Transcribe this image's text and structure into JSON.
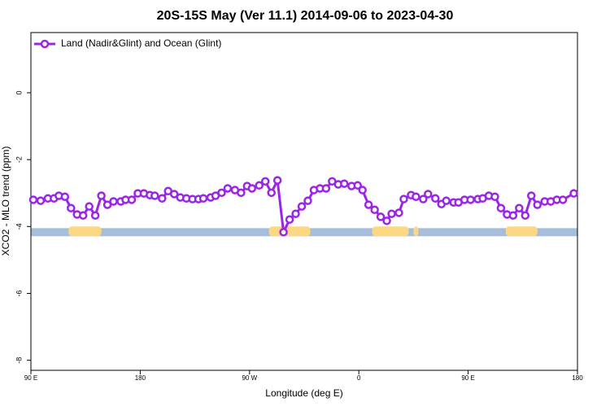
{
  "chart_data": {
    "type": "line",
    "title": "20S-15S May (Ver 11.1)   2014-09-06 to 2023-04-30",
    "x_label": "Longitude (deg E)",
    "y_label": "XCO2 - MLO trend (ppm)",
    "xlim": [
      90,
      540
    ],
    "ylim": [
      -8.3,
      1.8
    ],
    "xticks": [
      {
        "value": 90,
        "label": "90 E"
      },
      180,
      {
        "value": 270,
        "label": "90 W"
      },
      {
        "value": 360,
        "label": "0"
      },
      {
        "value": 450,
        "label": "90 E"
      },
      {
        "value": 540,
        "label": "180"
      }
    ],
    "yticks": [
      -8,
      -6,
      -4,
      -2,
      0
    ],
    "legend": "top-left",
    "x": [
      92,
      98,
      104,
      109,
      113,
      118,
      123,
      128,
      133,
      138,
      143,
      148,
      153,
      158,
      164,
      168,
      173,
      178,
      183,
      188,
      192,
      198,
      203,
      208,
      213,
      218,
      223,
      228,
      232,
      238,
      242,
      247,
      252,
      258,
      263,
      268,
      272,
      278,
      283,
      288,
      293,
      298,
      303,
      308,
      313,
      318,
      323,
      328,
      333,
      338,
      343,
      348,
      354,
      359,
      363,
      368,
      373,
      378,
      383,
      387,
      393,
      397,
      403,
      407,
      413,
      417,
      423,
      428,
      432,
      438,
      442,
      447,
      452,
      458,
      462,
      467,
      472,
      477,
      482,
      487,
      492,
      497,
      502,
      507,
      513,
      518,
      523,
      528,
      537
    ],
    "series": [
      {
        "name": "Land (Nadir&Glint) and Ocean (Glint)",
        "color": "#9b25e6",
        "values": [
          -3.2,
          -3.23,
          -3.16,
          -3.16,
          -3.08,
          -3.11,
          -3.45,
          -3.64,
          -3.67,
          -3.4,
          -3.67,
          -3.08,
          -3.35,
          -3.25,
          -3.25,
          -3.2,
          -3.2,
          -3.01,
          -3.01,
          -3.06,
          -3.08,
          -3.16,
          -2.94,
          -3.03,
          -3.13,
          -3.16,
          -3.18,
          -3.18,
          -3.16,
          -3.13,
          -3.08,
          -2.99,
          -2.86,
          -2.91,
          -2.99,
          -2.79,
          -2.86,
          -2.77,
          -2.65,
          -2.99,
          -2.62,
          -4.17,
          -3.79,
          -3.62,
          -3.4,
          -3.23,
          -2.91,
          -2.86,
          -2.86,
          -2.65,
          -2.74,
          -2.72,
          -2.79,
          -2.77,
          -2.91,
          -3.35,
          -3.5,
          -3.71,
          -3.83,
          -3.62,
          -3.59,
          -3.18,
          -3.06,
          -3.11,
          -3.18,
          -3.03,
          -3.16,
          -3.33,
          -3.23,
          -3.28,
          -3.28,
          -3.2,
          -3.2,
          -3.18,
          -3.16,
          -3.08,
          -3.11,
          -3.45,
          -3.64,
          -3.67,
          -3.45,
          -3.67,
          -3.08,
          -3.35,
          -3.25,
          -3.25,
          -3.2,
          -3.2,
          -3.01
        ]
      }
    ],
    "surface_band": {
      "y": -4.17,
      "ocean_color": "#a6bddb",
      "land_color": "#fdd882",
      "land": [
        [
          121,
          148
        ],
        [
          286,
          320
        ],
        [
          371,
          401
        ],
        [
          405,
          409
        ],
        [
          481,
          507
        ]
      ]
    }
  }
}
